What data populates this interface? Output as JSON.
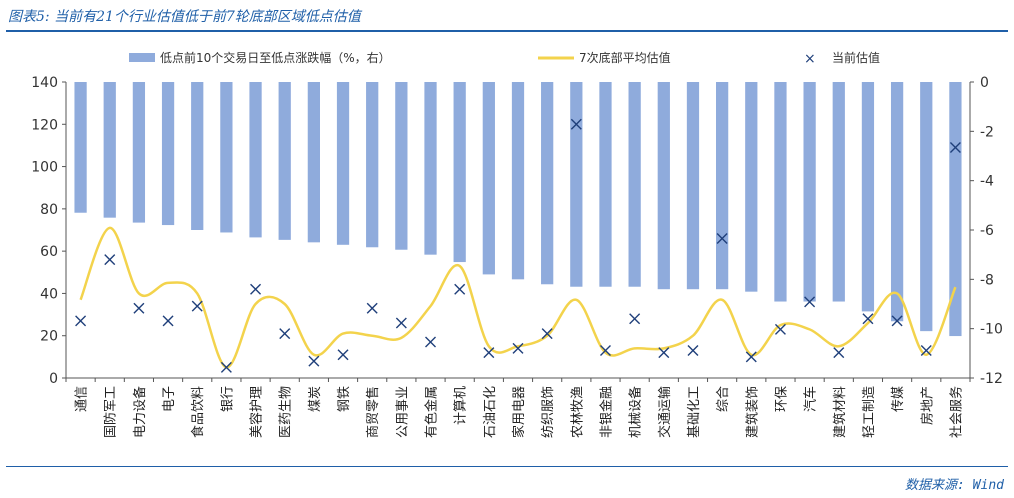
{
  "figure_title": "图表5: 当前有21个行业估值低于前7轮底部区域低点估值",
  "source": "数据来源: Wind",
  "colors": {
    "bar": "#8fabdc",
    "line": "#f3d34c",
    "marker": "#1f3f7a",
    "accent": "#1f5fa8",
    "axis": "#555555"
  },
  "chart_data": {
    "type": "bar",
    "categories": [
      "通信",
      "国防军工",
      "电力设备",
      "电子",
      "食品饮料",
      "银行",
      "美容护理",
      "医药生物",
      "煤炭",
      "钢铁",
      "商贸零售",
      "公用事业",
      "有色金属",
      "计算机",
      "石油石化",
      "家用电器",
      "纺织服饰",
      "农林牧渔",
      "非银金融",
      "机械设备",
      "交通运输",
      "基础化工",
      "综合",
      "建筑装饰",
      "环保",
      "汽车",
      "建筑材料",
      "轻工制造",
      "传媒",
      "房地产",
      "社会服务"
    ],
    "left_axis": {
      "range": [
        0,
        140
      ],
      "ticks": [
        "0",
        "20",
        "40",
        "60",
        "80",
        "100",
        "120",
        "140"
      ]
    },
    "right_axis": {
      "range": [
        -12,
        0
      ],
      "ticks": [
        "0",
        "-2",
        "-4",
        "-6",
        "-8",
        "-10",
        "-12"
      ]
    },
    "grid": false,
    "legend_position": "top",
    "series": [
      {
        "name": "低点前10个交易日至低点涨跌幅（%，右）",
        "type": "bar",
        "axis": "right",
        "values": [
          -5.3,
          -5.5,
          -5.7,
          -5.8,
          -6.0,
          -6.1,
          -6.3,
          -6.4,
          -6.5,
          -6.6,
          -6.7,
          -6.8,
          -7.0,
          -7.3,
          -7.8,
          -8.0,
          -8.2,
          -8.3,
          -8.3,
          -8.3,
          -8.4,
          -8.4,
          -8.4,
          -8.5,
          -8.9,
          -8.9,
          -8.9,
          -9.3,
          -9.7,
          -10.1,
          -10.3
        ]
      },
      {
        "name": "7次底部平均估值",
        "type": "line",
        "axis": "left",
        "values": [
          37,
          71,
          40,
          45,
          40,
          5,
          35,
          35,
          11,
          21,
          20,
          19,
          34,
          53,
          15,
          15,
          20,
          37,
          12,
          14,
          14,
          20,
          37,
          11,
          25,
          23,
          15,
          26,
          40,
          11,
          43
        ]
      },
      {
        "name": "当前估值",
        "type": "scatter",
        "axis": "left",
        "values": [
          27,
          56,
          33,
          27,
          34,
          5,
          42,
          21,
          8,
          11,
          33,
          26,
          17,
          42,
          12,
          14,
          21,
          120,
          13,
          28,
          12,
          13,
          66,
          10,
          23,
          36,
          12,
          28,
          27,
          13,
          109
        ]
      }
    ]
  }
}
